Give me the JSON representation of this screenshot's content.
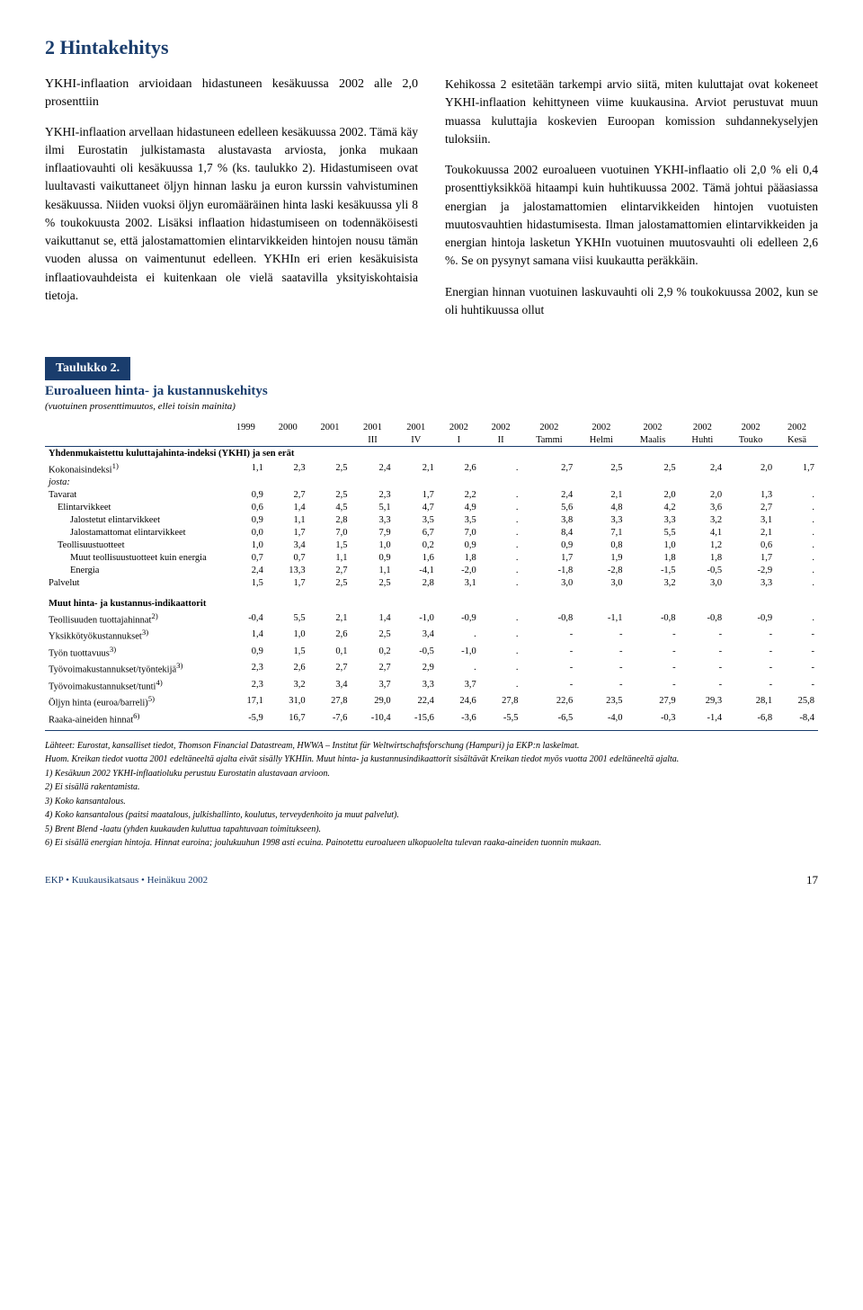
{
  "section": {
    "title": "2 Hintakehitys",
    "sub_heading": "YKHI-inflaation arvioidaan hidastuneen kesäkuussa 2002 alle 2,0 prosenttiin",
    "left_paras": [
      "YKHI-inflaation arvellaan hidastuneen edelleen kesäkuussa 2002. Tämä käy ilmi Eurostatin julkistamasta alustavasta arviosta, jonka mukaan inflaatiovauhti oli kesäkuussa 1,7 % (ks. taulukko 2). Hidastumiseen ovat luultavasti vaikuttaneet öljyn hinnan lasku ja euron kurssin vahvistuminen kesäkuussa. Niiden vuoksi öljyn euromääräinen hinta laski kesäkuussa yli 8 % toukokuusta 2002. Lisäksi inflaation hidastumiseen on todennäköisesti vaikuttanut se, että jalostamattomien elintarvikkeiden hintojen nousu tämän vuoden alussa on vaimentunut edelleen. YKHIn eri erien kesäkuisista inflaatiovauhdeista ei kuitenkaan ole vielä saatavilla yksityiskohtaisia tietoja."
    ],
    "right_paras": [
      "Kehikossa 2 esitetään tarkempi arvio siitä, miten kuluttajat ovat kokeneet YKHI-inflaation kehittyneen viime kuukausina. Arviot perustuvat muun muassa kuluttajia koskevien Euroopan komission suhdannekyselyjen tuloksiin.",
      "Toukokuussa 2002 euroalueen vuotuinen YKHI-inflaatio oli 2,0 % eli 0,4 prosenttiyksikköä hitaampi kuin huhtikuussa 2002. Tämä johtui pääasiassa energian ja jalostamattomien elintarvikkeiden hintojen vuotuisten muutosvauhtien hidastumisesta. Ilman jalostamattomien elintarvikkeiden ja energian hintoja lasketun YKHIn vuotuinen muutosvauhti oli edelleen 2,6 %. Se on pysynyt samana viisi kuukautta peräkkäin.",
      "Energian hinnan vuotuinen laskuvauhti oli 2,9 % toukokuussa 2002, kun se oli huhtikuussa ollut"
    ]
  },
  "table": {
    "box_label": "Taulukko 2.",
    "title": "Euroalueen hinta- ja kustannuskehitys",
    "subtitle": "(vuotuinen prosenttimuutos, ellei toisin mainita)",
    "header_top": [
      "",
      "1999",
      "2000",
      "2001",
      "2001",
      "2001",
      "2002",
      "2002",
      "2002",
      "2002",
      "2002",
      "2002",
      "2002",
      "2002"
    ],
    "header_bot": [
      "",
      "",
      "",
      "",
      "III",
      "IV",
      "I",
      "II",
      "Tammi",
      "Helmi",
      "Maalis",
      "Huhti",
      "Touko",
      "Kesä"
    ],
    "groups": [
      {
        "heading": "Yhdenmukaistettu kuluttajahinta-indeksi (YKHI) ja sen erät",
        "rows": [
          {
            "label": "Kokonaisindeksi",
            "sup": "1)",
            "indent": 0,
            "cells": [
              "1,1",
              "2,3",
              "2,5",
              "2,4",
              "2,1",
              "2,6",
              ".",
              "2,7",
              "2,5",
              "2,5",
              "2,4",
              "2,0",
              "1,7"
            ],
            "italicNext": true
          },
          {
            "label": "josta:",
            "indent": 0,
            "italic": true,
            "cells": [
              "",
              "",
              "",
              "",
              "",
              "",
              "",
              "",
              "",
              "",
              "",
              "",
              ""
            ]
          },
          {
            "label": "Tavarat",
            "indent": 0,
            "cells": [
              "0,9",
              "2,7",
              "2,5",
              "2,3",
              "1,7",
              "2,2",
              ".",
              "2,4",
              "2,1",
              "2,0",
              "2,0",
              "1,3",
              "."
            ]
          },
          {
            "label": "Elintarvikkeet",
            "indent": 1,
            "cells": [
              "0,6",
              "1,4",
              "4,5",
              "5,1",
              "4,7",
              "4,9",
              ".",
              "5,6",
              "4,8",
              "4,2",
              "3,6",
              "2,7",
              "."
            ]
          },
          {
            "label": "Jalostetut elintarvikkeet",
            "indent": 2,
            "cells": [
              "0,9",
              "1,1",
              "2,8",
              "3,3",
              "3,5",
              "3,5",
              ".",
              "3,8",
              "3,3",
              "3,3",
              "3,2",
              "3,1",
              "."
            ]
          },
          {
            "label": "Jalostamattomat elintarvikkeet",
            "indent": 2,
            "cells": [
              "0,0",
              "1,7",
              "7,0",
              "7,9",
              "6,7",
              "7,0",
              ".",
              "8,4",
              "7,1",
              "5,5",
              "4,1",
              "2,1",
              "."
            ]
          },
          {
            "label": "Teollisuustuotteet",
            "indent": 1,
            "cells": [
              "1,0",
              "3,4",
              "1,5",
              "1,0",
              "0,2",
              "0,9",
              ".",
              "0,9",
              "0,8",
              "1,0",
              "1,2",
              "0,6",
              "."
            ]
          },
          {
            "label": "Muut teollisuustuotteet kuin energia",
            "indent": 2,
            "cells": [
              "0,7",
              "0,7",
              "1,1",
              "0,9",
              "1,6",
              "1,8",
              ".",
              "1,7",
              "1,9",
              "1,8",
              "1,8",
              "1,7",
              "."
            ]
          },
          {
            "label": "Energia",
            "indent": 2,
            "cells": [
              "2,4",
              "13,3",
              "2,7",
              "1,1",
              "-4,1",
              "-2,0",
              ".",
              "-1,8",
              "-2,8",
              "-1,5",
              "-0,5",
              "-2,9",
              "."
            ]
          },
          {
            "label": "Palvelut",
            "indent": 0,
            "cells": [
              "1,5",
              "1,7",
              "2,5",
              "2,5",
              "2,8",
              "3,1",
              ".",
              "3,0",
              "3,0",
              "3,2",
              "3,0",
              "3,3",
              "."
            ]
          }
        ]
      },
      {
        "heading": "Muut hinta- ja kustannus-indikaattorit",
        "rows": [
          {
            "label": "Teollisuuden tuottajahinnat",
            "sup": "2)",
            "indent": 0,
            "cells": [
              "-0,4",
              "5,5",
              "2,1",
              "1,4",
              "-1,0",
              "-0,9",
              ".",
              "-0,8",
              "-1,1",
              "-0,8",
              "-0,8",
              "-0,9",
              "."
            ]
          },
          {
            "label": "Yksikkötyökustannukset",
            "sup": "3)",
            "indent": 0,
            "cells": [
              "1,4",
              "1,0",
              "2,6",
              "2,5",
              "3,4",
              ".",
              ".",
              "-",
              "-",
              "-",
              "-",
              "-",
              "-"
            ]
          },
          {
            "label": "Työn tuottavuus",
            "sup": "3)",
            "indent": 0,
            "cells": [
              "0,9",
              "1,5",
              "0,1",
              "0,2",
              "-0,5",
              "-1,0",
              ".",
              "-",
              "-",
              "-",
              "-",
              "-",
              "-"
            ]
          },
          {
            "label": "Työvoimakustannukset/työntekijä",
            "sup": "3)",
            "indent": 0,
            "cells": [
              "2,3",
              "2,6",
              "2,7",
              "2,7",
              "2,9",
              ".",
              ".",
              "-",
              "-",
              "-",
              "-",
              "-",
              "-"
            ]
          },
          {
            "label": "Työvoimakustannukset/tunti",
            "sup": "4)",
            "indent": 0,
            "cells": [
              "2,3",
              "3,2",
              "3,4",
              "3,7",
              "3,3",
              "3,7",
              ".",
              "-",
              "-",
              "-",
              "-",
              "-",
              "-"
            ]
          },
          {
            "label": "Öljyn hinta (euroa/barreli)",
            "sup": "5)",
            "indent": 0,
            "cells": [
              "17,1",
              "31,0",
              "27,8",
              "29,0",
              "22,4",
              "24,6",
              "27,8",
              "22,6",
              "23,5",
              "27,9",
              "29,3",
              "28,1",
              "25,8"
            ]
          },
          {
            "label": "Raaka-aineiden hinnat",
            "sup": "6)",
            "indent": 0,
            "cells": [
              "-5,9",
              "16,7",
              "-7,6",
              "-10,4",
              "-15,6",
              "-3,6",
              "-5,5",
              "-6,5",
              "-4,0",
              "-0,3",
              "-1,4",
              "-6,8",
              "-8,4"
            ]
          }
        ]
      }
    ],
    "footnotes": [
      "Lähteet: Eurostat, kansalliset tiedot, Thomson Financial Datastream, HWWA – Institut für Weltwirtschaftsforschung (Hampuri) ja EKP:n laskelmat.",
      "Huom. Kreikan tiedot vuotta 2001 edeltäneeltä ajalta eivät sisälly YKHIin. Muut hinta- ja kustannusindikaattorit sisältävät Kreikan tiedot myös vuotta 2001 edeltäneeltä ajalta.",
      "1)  Kesäkuun 2002 YKHI-inflaatioluku perustuu Eurostatin alustavaan arvioon.",
      "2)  Ei sisällä rakentamista.",
      "3)  Koko kansantalous.",
      "4)  Koko kansantalous (paitsi maatalous, julkishallinto, koulutus, terveydenhoito ja muut palvelut).",
      "5)  Brent Blend -laatu (yhden kuukauden kuluttua tapahtuvaan toimitukseen).",
      "6)  Ei sisällä energian hintoja. Hinnat euroina; joulukuuhun 1998 asti ecuina. Painotettu euroalueen ulkopuolelta tulevan raaka-aineiden tuonnin mukaan."
    ]
  },
  "footer": {
    "label": "EKP • Kuukausikatsaus • Heinäkuu 2002",
    "page": "17"
  }
}
